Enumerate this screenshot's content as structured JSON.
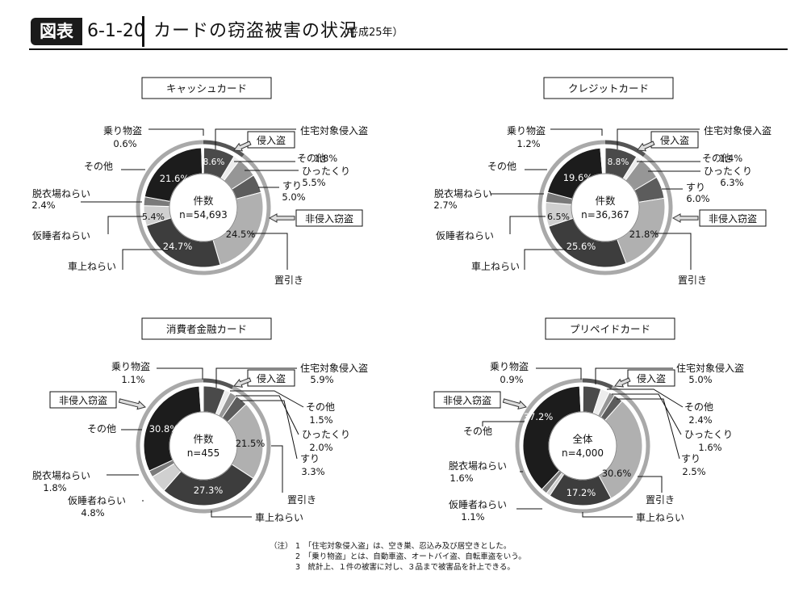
{
  "header": {
    "badge": "図表",
    "figure_number": "6-1-20",
    "title": "カードの窃盗被害の状況",
    "subtitle": "（平成25年）"
  },
  "notes": {
    "prefix": "（注）",
    "items": [
      "1　「住宅対象侵入盗」は、空き巣、忍込み及び居空きとした。",
      "2　「乗り物盗」とは、自動車盗、オートバイ盗、自転車盗をいう。",
      "3　統計上、１件の被害に対し、３品まで被害品を計上できる。"
    ]
  },
  "colors": {
    "住宅対象侵入盗": "#4a4a4a",
    "その他（侵入盗）": "#ececec",
    "ひったくり": "#969696",
    "すり": "#5c5c5c",
    "置引き": "#b0b0b0",
    "車上ねらい": "#3d3d3d",
    "仮睡者ねらい": "#d0d0d0",
    "脱衣場ねらい": "#7a7a7a",
    "その他（非侵入窃盗）": "#1c1c1c",
    "乗り物盗": "#ffffff",
    "ring_gray": "#a9a9a9",
    "ring_dark": "#555555"
  },
  "chart_data": [
    {
      "type": "pie",
      "title": "キャッシュカード",
      "center_label": "件数",
      "center_value": "n=54,693",
      "group_labels": {
        "invasion": "侵入盗",
        "non_invasion": "非侵入窃盗"
      },
      "slices": [
        {
          "key": "住宅対象侵入盗",
          "label": "住宅対象侵入盗",
          "value": 8.6,
          "value_text": "8.6%"
        },
        {
          "key": "その他（侵入盗）",
          "label": "その他",
          "value": 1.8,
          "value_text": "1.8%"
        },
        {
          "key": "ひったくり",
          "label": "ひったくり",
          "value": 5.5,
          "value_text": "5.5%"
        },
        {
          "key": "すり",
          "label": "すり",
          "value": 5.0,
          "value_text": "5.0%"
        },
        {
          "key": "置引き",
          "label": "置引き",
          "value": 24.5,
          "value_text": "24.5%"
        },
        {
          "key": "車上ねらい",
          "label": "車上ねらい",
          "value": 24.7,
          "value_text": "24.7%"
        },
        {
          "key": "仮睡者ねらい",
          "label": "仮睡者ねらい",
          "value": 5.4,
          "value_text": "5.4%"
        },
        {
          "key": "脱衣場ねらい",
          "label": "脱衣場ねらい",
          "value": 2.4,
          "value_text": "2.4%"
        },
        {
          "key": "その他（非侵入窃盗）",
          "label": "その他",
          "value": 21.6,
          "value_text": "21.6%"
        },
        {
          "key": "乗り物盗",
          "label": "乗り物盗",
          "value": 0.6,
          "value_text": "0.6%"
        }
      ]
    },
    {
      "type": "pie",
      "title": "クレジットカード",
      "center_label": "件数",
      "center_value": "n=36,367",
      "group_labels": {
        "invasion": "侵入盗",
        "non_invasion": "非侵入窃盗"
      },
      "slices": [
        {
          "key": "住宅対象侵入盗",
          "label": "住宅対象侵入盗",
          "value": 8.8,
          "value_text": "8.8%"
        },
        {
          "key": "その他（侵入盗）",
          "label": "その他",
          "value": 1.4,
          "value_text": "1.4%"
        },
        {
          "key": "ひったくり",
          "label": "ひったくり",
          "value": 6.3,
          "value_text": "6.3%"
        },
        {
          "key": "すり",
          "label": "すり",
          "value": 6.0,
          "value_text": "6.0%"
        },
        {
          "key": "置引き",
          "label": "置引き",
          "value": 21.8,
          "value_text": "21.8%"
        },
        {
          "key": "車上ねらい",
          "label": "車上ねらい",
          "value": 25.6,
          "value_text": "25.6%"
        },
        {
          "key": "仮睡者ねらい",
          "label": "仮睡者ねらい",
          "value": 6.5,
          "value_text": "6.5%"
        },
        {
          "key": "脱衣場ねらい",
          "label": "脱衣場ねらい",
          "value": 2.7,
          "value_text": "2.7%"
        },
        {
          "key": "その他（非侵入窃盗）",
          "label": "その他",
          "value": 19.6,
          "value_text": "19.6%"
        },
        {
          "key": "乗り物盗",
          "label": "乗り物盗",
          "value": 1.2,
          "value_text": "1.2%"
        }
      ]
    },
    {
      "type": "pie",
      "title": "消費者金融カード",
      "center_label": "件数",
      "center_value": "n=455",
      "group_labels": {
        "invasion": "侵入盗",
        "non_invasion": "非侵入窃盗"
      },
      "slices": [
        {
          "key": "住宅対象侵入盗",
          "label": "住宅対象侵入盗",
          "value": 5.9,
          "value_text": "5.9%"
        },
        {
          "key": "その他（侵入盗）",
          "label": "その他",
          "value": 1.5,
          "value_text": "1.5%"
        },
        {
          "key": "ひったくり",
          "label": "ひったくり",
          "value": 2.0,
          "value_text": "2.0%"
        },
        {
          "key": "すり",
          "label": "すり",
          "value": 3.3,
          "value_text": "3.3%"
        },
        {
          "key": "置引き",
          "label": "置引き",
          "value": 21.5,
          "value_text": "21.5%"
        },
        {
          "key": "車上ねらい",
          "label": "車上ねらい",
          "value": 27.3,
          "value_text": "27.3%"
        },
        {
          "key": "仮睡者ねらい",
          "label": "仮睡者ねらい",
          "value": 4.8,
          "value_text": "4.8%"
        },
        {
          "key": "脱衣場ねらい",
          "label": "脱衣場ねらい",
          "value": 1.8,
          "value_text": "1.8%"
        },
        {
          "key": "その他（非侵入窃盗）",
          "label": "その他",
          "value": 30.8,
          "value_text": "30.8%"
        },
        {
          "key": "乗り物盗",
          "label": "乗り物盗",
          "value": 1.1,
          "value_text": "1.1%"
        }
      ]
    },
    {
      "type": "pie",
      "title": "プリペイドカード",
      "center_label": "全体",
      "center_value": "n=4,000",
      "group_labels": {
        "invasion": "侵入盗",
        "non_invasion": "非侵入窃盗"
      },
      "slices": [
        {
          "key": "住宅対象侵入盗",
          "label": "住宅対象侵入盗",
          "value": 5.0,
          "value_text": "5.0%"
        },
        {
          "key": "その他（侵入盗）",
          "label": "その他",
          "value": 2.4,
          "value_text": "2.4%"
        },
        {
          "key": "ひったくり",
          "label": "ひったくり",
          "value": 1.6,
          "value_text": "1.6%"
        },
        {
          "key": "すり",
          "label": "すり",
          "value": 2.5,
          "value_text": "2.5%"
        },
        {
          "key": "置引き",
          "label": "置引き",
          "value": 30.6,
          "value_text": "30.6%"
        },
        {
          "key": "車上ねらい",
          "label": "車上ねらい",
          "value": 17.2,
          "value_text": "17.2%"
        },
        {
          "key": "仮睡者ねらい",
          "label": "仮睡者ねらい",
          "value": 1.1,
          "value_text": "1.1%"
        },
        {
          "key": "脱衣場ねらい",
          "label": "脱衣場ねらい",
          "value": 1.6,
          "value_text": "1.6%"
        },
        {
          "key": "その他（非侵入窃盗）",
          "label": "その他",
          "value": 37.2,
          "value_text": "37.2%"
        },
        {
          "key": "乗り物盗",
          "label": "乗り物盗",
          "value": 0.9,
          "value_text": "0.9%"
        }
      ]
    }
  ]
}
